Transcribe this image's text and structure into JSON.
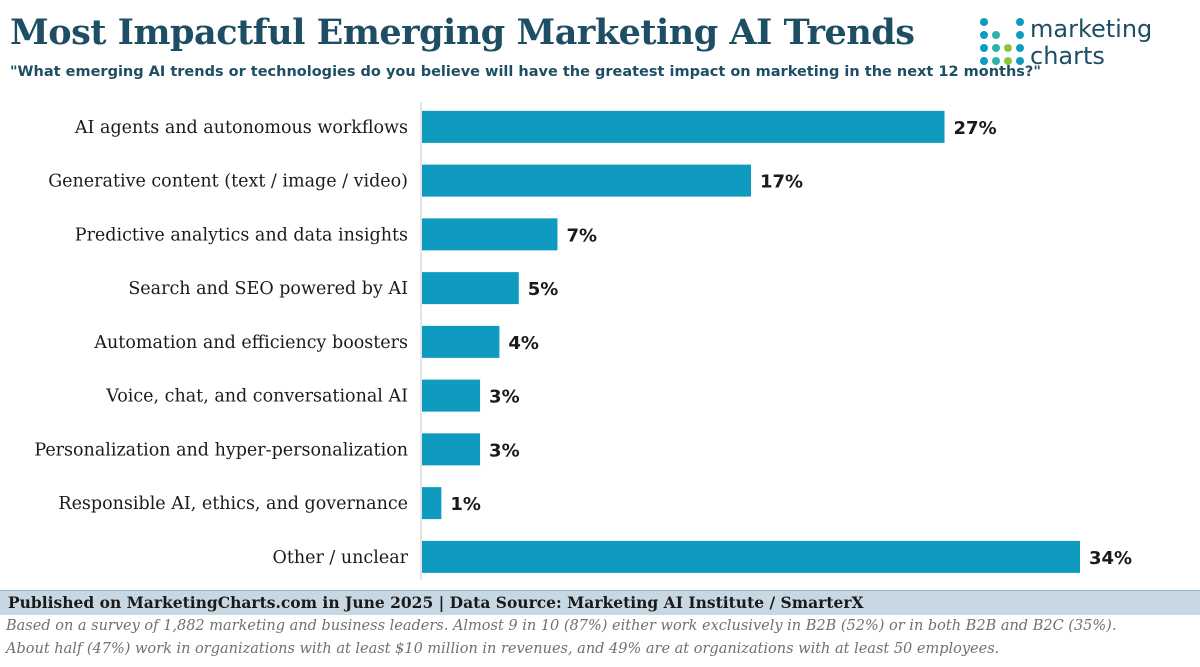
{
  "title": "Most Impactful Emerging Marketing AI Trends",
  "subtitle": "\"What emerging AI trends or technologies do you believe will have the greatest impact on marketing in the next 12 months?\"",
  "logo": {
    "line1": "marketing",
    "line2": "charts"
  },
  "colors": {
    "bar": "#0e9bbf",
    "title": "#1e4e63",
    "footer_band": "#c8d8e3"
  },
  "chart_data": {
    "type": "bar",
    "orientation": "horizontal",
    "categories": [
      "AI agents and autonomous workflows",
      "Generative content (text / image / video)",
      "Predictive analytics and data insights",
      "Search and SEO powered by AI",
      "Automation and efficiency boosters",
      "Voice, chat, and conversational AI",
      "Personalization and hyper-personalization",
      "Responsible AI, ethics, and governance",
      "Other / unclear"
    ],
    "values": [
      27,
      17,
      7,
      5,
      4,
      3,
      3,
      1,
      34
    ],
    "value_labels": [
      "27%",
      "17%",
      "7%",
      "5%",
      "4%",
      "3%",
      "3%",
      "1%",
      "34%"
    ],
    "xlim": [
      0,
      34
    ],
    "grid": false,
    "legend": "none"
  },
  "footer": {
    "published": "Published on MarketingCharts.com in June 2025 | Data Source: Marketing AI Institute / SmarterX",
    "note_line1": "Based on a survey of 1,882 marketing and business leaders. Almost 9 in 10 (87%) either work exclusively in B2B (52%) or in both B2B and B2C (35%).",
    "note_line2": "About half (47%) work in organizations with at least $10 million in revenues, and 49% are at organizations with at least 50 employees."
  }
}
